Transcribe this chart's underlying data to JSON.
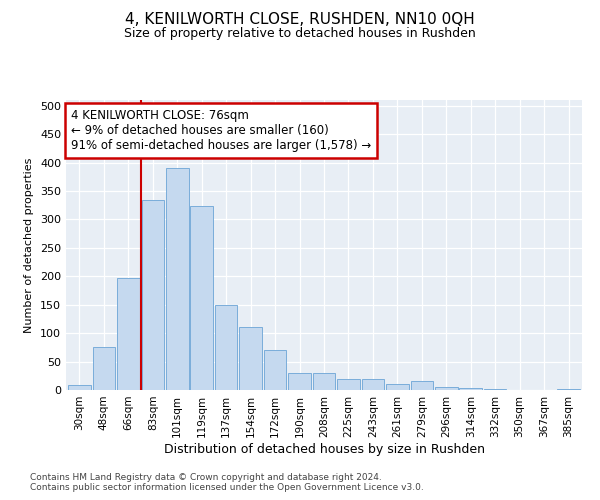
{
  "title": "4, KENILWORTH CLOSE, RUSHDEN, NN10 0QH",
  "subtitle": "Size of property relative to detached houses in Rushden",
  "xlabel": "Distribution of detached houses by size in Rushden",
  "ylabel": "Number of detached properties",
  "bar_color": "#c5d9ef",
  "bar_edge_color": "#7aadda",
  "categories": [
    "30sqm",
    "48sqm",
    "66sqm",
    "83sqm",
    "101sqm",
    "119sqm",
    "137sqm",
    "154sqm",
    "172sqm",
    "190sqm",
    "208sqm",
    "225sqm",
    "243sqm",
    "261sqm",
    "279sqm",
    "296sqm",
    "314sqm",
    "332sqm",
    "350sqm",
    "367sqm",
    "385sqm"
  ],
  "values": [
    8,
    75,
    197,
    335,
    390,
    323,
    149,
    110,
    70,
    30,
    30,
    19,
    20,
    10,
    15,
    6,
    3,
    1,
    0,
    0,
    1
  ],
  "ylim": [
    0,
    510
  ],
  "yticks": [
    0,
    50,
    100,
    150,
    200,
    250,
    300,
    350,
    400,
    450,
    500
  ],
  "vline_color": "#cc0000",
  "annotation_text": "4 KENILWORTH CLOSE: 76sqm\n← 9% of detached houses are smaller (160)\n91% of semi-detached houses are larger (1,578) →",
  "annotation_box_color": "#ffffff",
  "annotation_box_edge": "#cc0000",
  "footer_line1": "Contains HM Land Registry data © Crown copyright and database right 2024.",
  "footer_line2": "Contains public sector information licensed under the Open Government Licence v3.0.",
  "plot_bg_color": "#e8eef5"
}
